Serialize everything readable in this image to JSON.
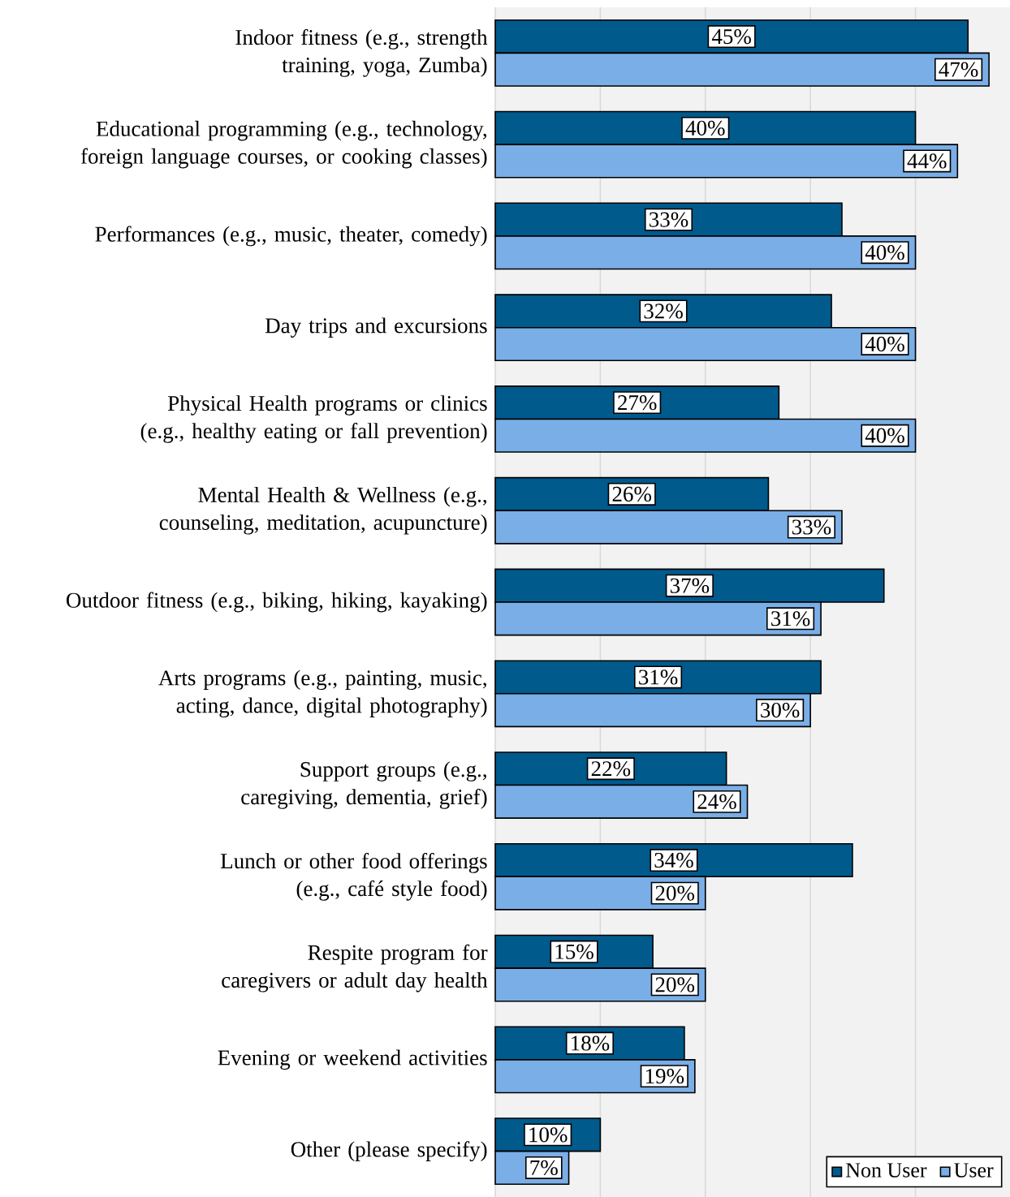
{
  "chart_data": {
    "type": "bar",
    "orientation": "horizontal",
    "categories": [
      "Indoor fitness (e.g., strength training, yoga, Zumba)",
      "Educational programming (e.g., technology, foreign language courses, or cooking classes)",
      "Performances (e.g., music, theater, comedy)",
      "Day trips and excursions",
      "Physical Health programs or clinics (e.g., healthy eating or fall prevention)",
      "Mental Health & Wellness (e.g., counseling, meditation, acupuncture)",
      "Outdoor fitness (e.g., biking, hiking, kayaking)",
      "Arts programs (e.g., painting, music, acting, dance, digital photography)",
      "Support groups (e.g., caregiving, dementia, grief)",
      "Lunch or other food offerings (e.g., café style food)",
      "Respite program for caregivers or adult day health",
      "Evening or weekend activities",
      "Other (please specify)"
    ],
    "series": [
      {
        "name": "Non User",
        "color": "#005a8c",
        "values": [
          45,
          40,
          33,
          32,
          27,
          26,
          37,
          31,
          22,
          34,
          15,
          18,
          10
        ],
        "value_labels": [
          "45%",
          "40%",
          "33%",
          "32%",
          "27%",
          "26%",
          "37%",
          "31%",
          "22%",
          "34%",
          "15%",
          "18%",
          "10%"
        ]
      },
      {
        "name": "User",
        "color": "#7aaee6",
        "values": [
          47,
          44,
          40,
          40,
          40,
          33,
          31,
          30,
          24,
          20,
          20,
          19,
          7
        ],
        "value_labels": [
          "47%",
          "44%",
          "40%",
          "40%",
          "40%",
          "33%",
          "31%",
          "30%",
          "24%",
          "20%",
          "20%",
          "19%",
          "7%"
        ]
      }
    ],
    "xlim": [
      0,
      49
    ],
    "xticks": [
      {
        "value": 0,
        "label": null
      },
      {
        "value": 10,
        "label": null
      },
      {
        "value": 20,
        "label": null
      },
      {
        "value": 30,
        "label": null
      },
      {
        "value": 40,
        "label": null
      }
    ],
    "tick_labels": "y",
    "grid": "x",
    "legend": "bottom right"
  }
}
